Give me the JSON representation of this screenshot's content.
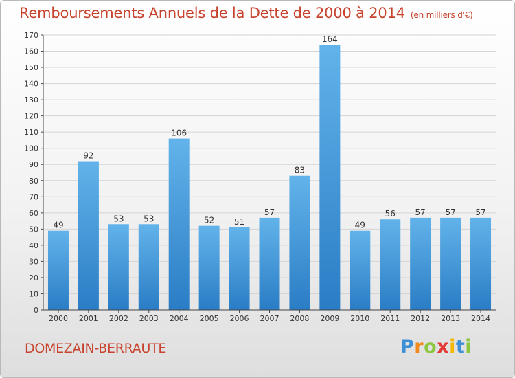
{
  "chart_data": {
    "type": "bar",
    "title": "Remboursements Annuels de la Dette de 2000 à 2014",
    "subtitle": "(en milliers d'€)",
    "categories": [
      "2000",
      "2001",
      "2002",
      "2003",
      "2004",
      "2005",
      "2006",
      "2007",
      "2008",
      "2009",
      "2010",
      "2011",
      "2012",
      "2013",
      "2014"
    ],
    "values": [
      49,
      92,
      53,
      53,
      106,
      52,
      51,
      57,
      83,
      164,
      49,
      56,
      57,
      57,
      57
    ],
    "data_labels": [
      "49",
      "92",
      "53",
      "53",
      "106",
      "52",
      "51",
      "57",
      "83",
      "164",
      "49",
      "56",
      "57",
      "57",
      "57"
    ],
    "ylim": [
      0,
      170
    ],
    "yticks": [
      "0",
      "10",
      "20",
      "30",
      "40",
      "50",
      "60",
      "70",
      "80",
      "90",
      "100",
      "110",
      "120",
      "130",
      "140",
      "150",
      "160",
      "170"
    ],
    "grid": true,
    "xlabel": "",
    "ylabel": ""
  },
  "footer": {
    "commune": "DOMEZAIN-BERRAUTE"
  },
  "logo": {
    "letters": [
      "P",
      "r",
      "o",
      "x",
      "i",
      "t",
      "i"
    ],
    "colors": [
      "#3d8fd6",
      "#f08a1c",
      "#8cc63f",
      "#e53935",
      "#f5b800",
      "#3d8fd6",
      "#8cc63f"
    ]
  },
  "colors": {
    "bar_light": "#62b3ea",
    "bar_dark": "#2a7dc5",
    "title": "#c7432d",
    "grid": "#d4d4d4",
    "axis": "#444444"
  }
}
